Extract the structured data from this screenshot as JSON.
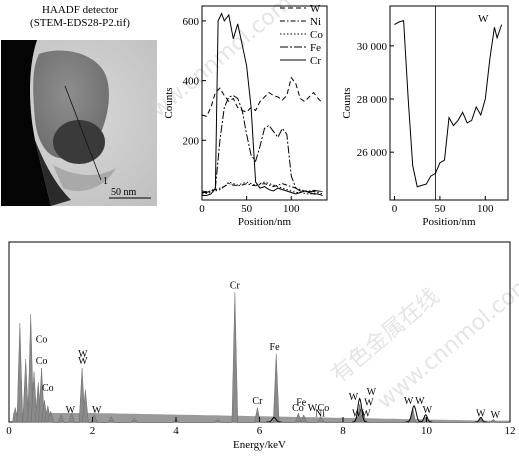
{
  "haadf": {
    "title_line1": "HAADF detector",
    "title_line2": "(STEM-EDS28-P2.tif)",
    "scale_bar": "50 nm",
    "marker": "1"
  },
  "chart_data": [
    {
      "type": "line",
      "xlabel": "Position/nm",
      "ylabel": "Counts",
      "xlim": [
        0,
        140
      ],
      "ylim": [
        0,
        650
      ],
      "xticks": [
        0,
        50,
        100
      ],
      "yticks": [
        200,
        400,
        600
      ],
      "legend_position": "top-right",
      "series": [
        {
          "name": "W",
          "style": "dashed",
          "x": [
            0,
            5,
            10,
            15,
            20,
            25,
            30,
            35,
            40,
            45,
            50,
            55,
            60,
            65,
            70,
            75,
            80,
            85,
            90,
            95,
            100,
            105,
            110,
            115,
            120,
            125,
            130,
            135
          ],
          "y": [
            285,
            280,
            310,
            360,
            375,
            350,
            330,
            340,
            310,
            300,
            295,
            310,
            300,
            330,
            345,
            360,
            350,
            345,
            335,
            350,
            410,
            390,
            340,
            330,
            345,
            360,
            340,
            325
          ]
        },
        {
          "name": "Ni",
          "style": "dashdot",
          "x": [
            0,
            5,
            10,
            15,
            20,
            25,
            30,
            35,
            40,
            45,
            50,
            55,
            60,
            65,
            70,
            75,
            80,
            85,
            90,
            95,
            100,
            105,
            110,
            115,
            120,
            125,
            130,
            135
          ],
          "y": [
            30,
            28,
            30,
            35,
            40,
            45,
            55,
            50,
            48,
            50,
            55,
            50,
            48,
            52,
            55,
            50,
            45,
            50,
            55,
            50,
            45,
            40,
            35,
            30,
            30,
            32,
            30,
            28
          ]
        },
        {
          "name": "Co",
          "style": "dotted",
          "x": [
            0,
            5,
            10,
            15,
            20,
            25,
            30,
            35,
            40,
            45,
            50,
            55,
            60,
            65,
            70,
            75,
            80,
            85,
            90,
            95,
            100,
            105,
            110,
            115,
            120,
            125,
            130,
            135
          ],
          "y": [
            20,
            22,
            25,
            30,
            35,
            45,
            60,
            55,
            50,
            55,
            60,
            55,
            50,
            55,
            60,
            55,
            50,
            45,
            40,
            35,
            30,
            25,
            25,
            22,
            20,
            22,
            25,
            20
          ]
        },
        {
          "name": "Fe",
          "style": "dashdot-long",
          "x": [
            0,
            5,
            10,
            15,
            20,
            25,
            30,
            35,
            40,
            45,
            50,
            55,
            60,
            65,
            70,
            75,
            80,
            85,
            90,
            95,
            100,
            105,
            110,
            115,
            120,
            125,
            130,
            135
          ],
          "y": [
            25,
            25,
            30,
            40,
            200,
            310,
            345,
            350,
            340,
            300,
            220,
            150,
            130,
            180,
            240,
            250,
            230,
            210,
            240,
            220,
            80,
            40,
            30,
            30,
            28,
            28,
            30,
            28
          ]
        },
        {
          "name": "Cr",
          "style": "solid",
          "x": [
            0,
            5,
            10,
            15,
            18,
            22,
            25,
            30,
            35,
            40,
            45,
            50,
            55,
            60,
            65,
            70,
            75,
            80,
            85,
            90,
            95,
            100,
            105,
            110,
            115,
            120,
            125,
            130,
            135
          ],
          "y": [
            15,
            15,
            20,
            40,
            600,
            625,
            600,
            620,
            540,
            590,
            520,
            450,
            310,
            60,
            40,
            45,
            35,
            30,
            40,
            35,
            30,
            25,
            20,
            25,
            30,
            25,
            20,
            20,
            15
          ]
        }
      ]
    },
    {
      "type": "line",
      "xlabel": "Position/nm",
      "ylabel": "Counts",
      "xlim": [
        -5,
        125
      ],
      "ylim": [
        24200,
        31500
      ],
      "xticks": [
        0,
        50,
        100
      ],
      "yticks": [
        26000,
        28000,
        30000
      ],
      "yticklabels": [
        "26 000",
        "28 000",
        "30 000"
      ],
      "vline": 45,
      "series": [
        {
          "name": "W",
          "x": [
            0,
            5,
            10,
            15,
            20,
            25,
            30,
            35,
            40,
            45,
            50,
            55,
            60,
            65,
            70,
            75,
            80,
            85,
            90,
            95,
            100,
            105,
            110,
            113,
            118
          ],
          "y": [
            30800,
            30900,
            30950,
            28000,
            25500,
            24700,
            24750,
            24800,
            25100,
            25200,
            25600,
            25700,
            27300,
            27000,
            27200,
            27500,
            27100,
            27200,
            27700,
            27400,
            28000,
            29500,
            30700,
            30300,
            30800
          ]
        }
      ]
    },
    {
      "type": "bar",
      "xlabel": "Energy/keV",
      "xlim": [
        0,
        12
      ],
      "xticks": [
        0,
        2,
        4,
        6,
        8,
        10,
        12
      ],
      "ylim": [
        0,
        100
      ],
      "peaks": [
        {
          "e": 0.15,
          "h": 8
        },
        {
          "e": 0.26,
          "h": 55
        },
        {
          "e": 0.4,
          "h": 35
        },
        {
          "e": 0.52,
          "h": 60
        },
        {
          "e": 0.6,
          "h": 28
        },
        {
          "e": 0.7,
          "h": 22
        },
        {
          "e": 0.78,
          "h": 30
        },
        {
          "e": 0.85,
          "h": 12
        },
        {
          "e": 0.93,
          "h": 9
        },
        {
          "e": 1.0,
          "h": 6
        },
        {
          "e": 1.25,
          "h": 4
        },
        {
          "e": 1.5,
          "h": 5
        },
        {
          "e": 1.75,
          "h": 30
        },
        {
          "e": 1.83,
          "h": 18
        },
        {
          "e": 2.04,
          "h": 4
        },
        {
          "e": 2.45,
          "h": 3
        },
        {
          "e": 3.0,
          "h": 2
        },
        {
          "e": 4.0,
          "h": 1.5
        },
        {
          "e": 5.0,
          "h": 1.5
        },
        {
          "e": 5.41,
          "h": 72
        },
        {
          "e": 5.95,
          "h": 8
        },
        {
          "e": 6.4,
          "h": 38
        },
        {
          "e": 6.93,
          "h": 5
        },
        {
          "e": 7.06,
          "h": 4
        },
        {
          "e": 7.47,
          "h": 3
        },
        {
          "e": 8.33,
          "h": 3
        },
        {
          "e": 8.4,
          "h": 10
        },
        {
          "e": 8.48,
          "h": 6
        },
        {
          "e": 9.67,
          "h": 8
        },
        {
          "e": 9.96,
          "h": 3
        },
        {
          "e": 11.3,
          "h": 2
        },
        {
          "e": 11.6,
          "h": 1.5
        }
      ],
      "outlines": [
        {
          "e": 8.4,
          "h": 13,
          "w": 0.09
        },
        {
          "e": 9.7,
          "h": 9,
          "w": 0.1
        },
        {
          "e": 9.98,
          "h": 4,
          "w": 0.08
        },
        {
          "e": 11.3,
          "h": 2.5,
          "w": 0.07
        },
        {
          "e": 6.35,
          "h": 2.5,
          "w": 0.09
        }
      ],
      "annotations": [
        {
          "text": "Cr",
          "e": 5.41,
          "level": 73
        },
        {
          "text": "Fe",
          "e": 6.36,
          "level": 39
        },
        {
          "text": "Cr",
          "e": 5.95,
          "level": 9
        },
        {
          "text": "Co",
          "e": 0.78,
          "level": 43
        },
        {
          "text": "Co",
          "e": 0.78,
          "level": 31
        },
        {
          "text": "Co",
          "e": 0.93,
          "level": 16
        },
        {
          "text": "W",
          "e": 1.77,
          "level": 35
        },
        {
          "text": "W",
          "e": 1.77,
          "level": 31
        },
        {
          "text": "W",
          "e": 1.47,
          "level": 4
        },
        {
          "text": "W",
          "e": 2.1,
          "level": 4
        },
        {
          "text": "Fe",
          "e": 7.0,
          "level": 8
        },
        {
          "text": "Co",
          "e": 6.92,
          "level": 5
        },
        {
          "text": "W",
          "e": 7.27,
          "level": 5
        },
        {
          "text": "Co",
          "e": 7.53,
          "level": 5
        },
        {
          "text": "Ni",
          "e": 7.45,
          "level": 2
        },
        {
          "text": "W",
          "e": 8.25,
          "level": 11
        },
        {
          "text": "W",
          "e": 8.33,
          "level": 2
        },
        {
          "text": "W",
          "e": 8.55,
          "level": 2
        },
        {
          "text": "W",
          "e": 8.68,
          "level": 14
        },
        {
          "text": "W",
          "e": 8.62,
          "level": 8
        },
        {
          "text": "W",
          "e": 9.57,
          "level": 9
        },
        {
          "text": "W",
          "e": 9.84,
          "level": 9
        },
        {
          "text": "W",
          "e": 10.02,
          "level": 4
        },
        {
          "text": "W",
          "e": 11.3,
          "level": 2
        },
        {
          "text": "W",
          "e": 11.65,
          "level": 1
        }
      ]
    }
  ],
  "watermarks": [
    "有色金属在线",
    "www.cnnmol.com"
  ]
}
